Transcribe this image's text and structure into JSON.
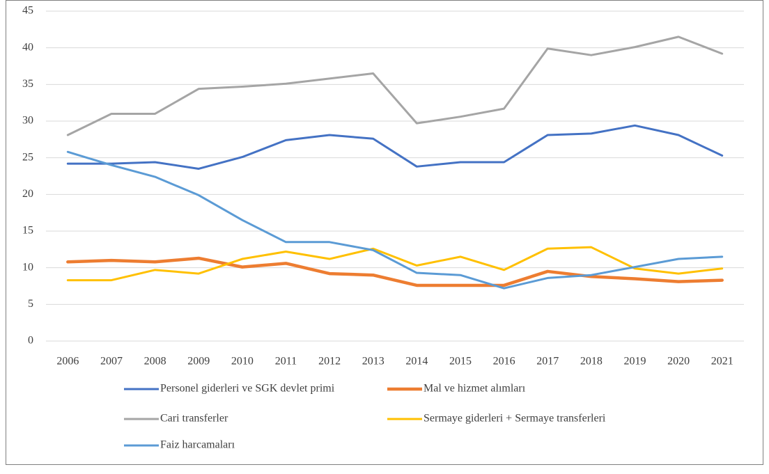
{
  "chart_data": {
    "type": "line",
    "categories": [
      "2006",
      "2007",
      "2008",
      "2009",
      "2010",
      "2011",
      "2012",
      "2013",
      "2014",
      "2015",
      "2016",
      "2017",
      "2018",
      "2019",
      "2020",
      "2021"
    ],
    "series": [
      {
        "name": "Personel giderleri ve SGK devlet primi",
        "color": "#4472c4",
        "values": [
          24.2,
          24.2,
          24.4,
          23.5,
          25.1,
          27.4,
          28.1,
          27.6,
          23.8,
          24.4,
          24.4,
          28.1,
          28.3,
          29.4,
          28.1,
          25.3
        ]
      },
      {
        "name": "Mal ve hizmet alımları",
        "color": "#ed7d31",
        "values": [
          10.8,
          11.0,
          10.8,
          11.3,
          10.1,
          10.6,
          9.2,
          9.0,
          7.6,
          7.6,
          7.6,
          9.5,
          8.8,
          8.5,
          8.1,
          8.3
        ]
      },
      {
        "name": "Cari transferler",
        "color": "#a5a5a5",
        "values": [
          28.1,
          31.0,
          31.0,
          34.4,
          34.7,
          35.1,
          35.8,
          36.5,
          29.7,
          30.6,
          31.7,
          39.9,
          39.0,
          40.1,
          41.5,
          39.2
        ]
      },
      {
        "name": "Sermaye giderleri + Sermaye transferleri",
        "color": "#ffc000",
        "values": [
          8.3,
          8.3,
          9.7,
          9.2,
          11.2,
          12.2,
          11.2,
          12.6,
          10.3,
          11.5,
          9.7,
          12.6,
          12.8,
          9.9,
          9.2,
          9.9
        ]
      },
      {
        "name": "Faiz harcamaları",
        "color": "#5b9bd5",
        "values": [
          25.8,
          24.0,
          22.4,
          19.9,
          16.5,
          13.5,
          13.5,
          12.4,
          9.3,
          9.0,
          7.2,
          8.6,
          9.0,
          10.1,
          11.2,
          11.5
        ]
      }
    ],
    "ylim": [
      0,
      45
    ],
    "yticks": [
      0,
      5,
      10,
      15,
      20,
      25,
      30,
      35,
      40,
      45
    ],
    "grid": true,
    "legend": "bottom"
  }
}
